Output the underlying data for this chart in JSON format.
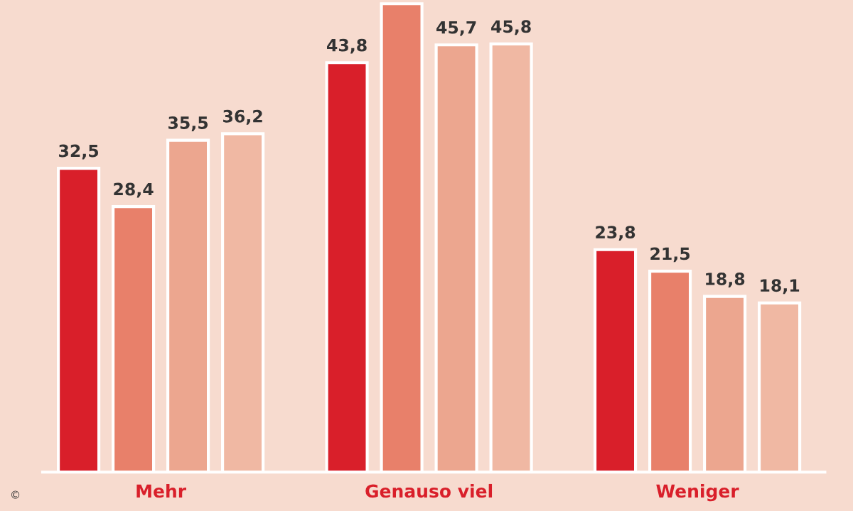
{
  "chart_data": {
    "type": "bar",
    "categories": [
      "Mehr",
      "Genauso viel",
      "Weniger"
    ],
    "series": [
      {
        "color": "#d91f2a",
        "values": [
          32.5,
          43.8,
          23.8
        ],
        "value_labels": [
          "32,5",
          "43,8",
          "23,8"
        ]
      },
      {
        "color": "#e8806a",
        "values": [
          28.4,
          50.1,
          21.5
        ],
        "value_labels": [
          "28,4",
          null,
          "21,5"
        ]
      },
      {
        "color": "#eca68f",
        "values": [
          35.5,
          45.7,
          18.8
        ],
        "value_labels": [
          "35,5",
          "45,7",
          "18,8"
        ]
      },
      {
        "color": "#f0b8a3",
        "values": [
          36.2,
          45.8,
          18.1
        ],
        "value_labels": [
          "36,2",
          "45,8",
          "18,1"
        ]
      }
    ],
    "ylim": [
      0,
      50.5
    ],
    "tick_labels": "x",
    "grid": false,
    "legend": false,
    "annotations": [
      "©"
    ]
  }
}
